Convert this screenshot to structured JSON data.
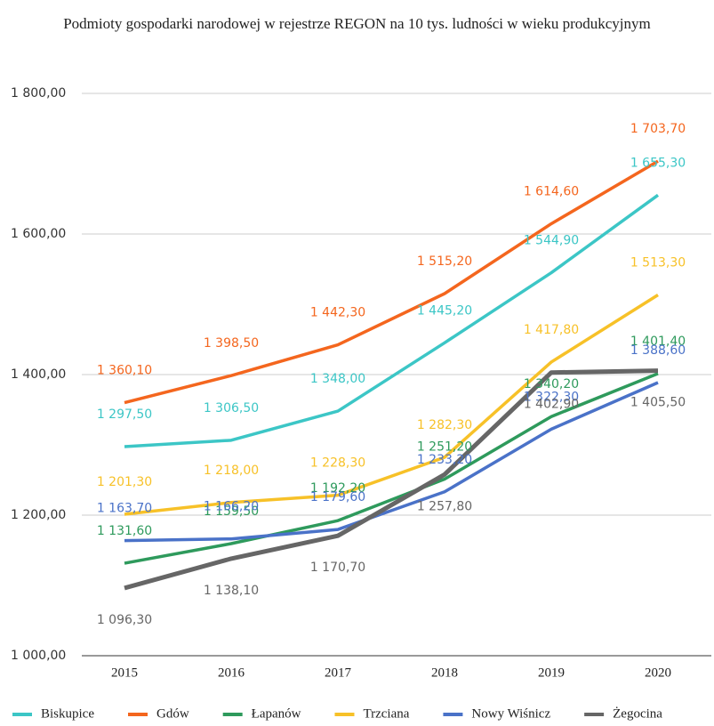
{
  "chart_data": {
    "type": "line",
    "title": "Podmioty gospodarki narodowej w rejestrze REGON na 10 tys. ludności w wieku produkcyjnym",
    "categories": [
      "2015",
      "2016",
      "2017",
      "2018",
      "2019",
      "2020"
    ],
    "ylim": [
      1000,
      1800
    ],
    "yticks": [
      {
        "value": 1000,
        "label": "1 000,00"
      },
      {
        "value": 1200,
        "label": "1 200,00"
      },
      {
        "value": 1400,
        "label": "1 400,00"
      },
      {
        "value": 1600,
        "label": "1 600,00"
      },
      {
        "value": 1800,
        "label": "1 800,00"
      }
    ],
    "grid": true,
    "legend": "bottom",
    "series": [
      {
        "name": "Biskupice",
        "color": "#3cc6c6",
        "values": [
          1297.5,
          1306.5,
          1348.0,
          1445.2,
          1544.9,
          1655.3
        ],
        "value_labels": [
          "1 297,50",
          "1 306,50",
          "1 348,00",
          "1 445,20",
          "1 544,90",
          "1 655,30"
        ]
      },
      {
        "name": "Gdów",
        "color": "#f4661e",
        "values": [
          1360.1,
          1398.5,
          1442.3,
          1515.2,
          1614.6,
          1703.7
        ],
        "value_labels": [
          "1 360,10",
          "1 398,50",
          "1 442,30",
          "1 515,20",
          "1 614,60",
          "1 703,70"
        ]
      },
      {
        "name": "Łapanów",
        "color": "#2e9a5c",
        "values": [
          1131.6,
          1159.5,
          1192.2,
          1251.2,
          1340.2,
          1401.4
        ],
        "value_labels": [
          "1 131,60",
          "1 159,50",
          "1 192,20",
          "1 251,20",
          "1 340,20",
          "1 401,40"
        ]
      },
      {
        "name": "Trzciana",
        "color": "#f7c128",
        "values": [
          1201.3,
          1218.0,
          1228.3,
          1282.3,
          1417.8,
          1513.3
        ],
        "value_labels": [
          "1 201,30",
          "1 218,00",
          "1 228,30",
          "1 282,30",
          "1 417,80",
          "1 513,30"
        ]
      },
      {
        "name": "Nowy Wiśnicz",
        "color": "#4a72c8",
        "values": [
          1163.7,
          1166.2,
          1179.6,
          1233.2,
          1322.3,
          1388.6
        ],
        "value_labels": [
          "1 163,70",
          "1 166,20",
          "1 179,60",
          "1 233,20",
          "1 322,30",
          "1 388,60"
        ]
      },
      {
        "name": "Żegocina",
        "color": "#666666",
        "values": [
          1096.3,
          1138.1,
          1170.7,
          1257.8,
          1402.9,
          1405.5
        ],
        "value_labels": [
          "1 096,30",
          "1 138,10",
          "1 170,70",
          "1 257,80",
          "1 402,90",
          "1 405,50"
        ]
      }
    ]
  }
}
